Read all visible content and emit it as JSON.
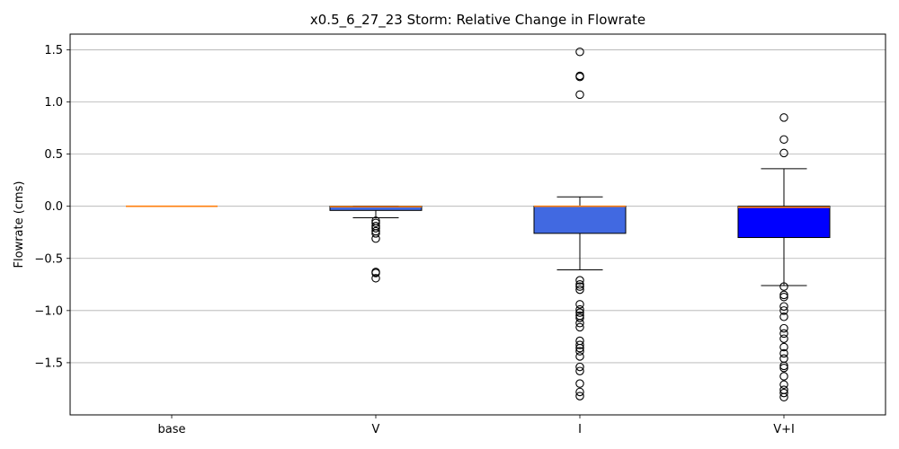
{
  "chart_data": {
    "type": "box",
    "title": "x0.5_6_27_23 Storm: Relative Change in Flowrate",
    "xlabel": "",
    "ylabel": "Flowrate (cms)",
    "ylim": [
      -2.0,
      1.65
    ],
    "yticks": [
      1.5,
      1.0,
      0.5,
      0.0,
      -0.5,
      -1.0,
      -1.5
    ],
    "ytick_labels": [
      "1.5",
      "1.0",
      "0.5",
      "0.0",
      "−0.5",
      "−1.0",
      "−1.5"
    ],
    "grid": "y",
    "categories": [
      "base",
      "V",
      "I",
      "V+I"
    ],
    "boxes": [
      {
        "label": "base",
        "q1": 0.0,
        "median": 0.0,
        "q3": 0.0,
        "whisker_low": 0.0,
        "whisker_high": 0.0,
        "fill": "#4169e1",
        "outliers": []
      },
      {
        "label": "V",
        "q1": -0.04,
        "median": -0.005,
        "q3": 0.0,
        "whisker_low": -0.11,
        "whisker_high": 0.0,
        "fill": "#4169e1",
        "outliers": [
          -0.14,
          -0.16,
          -0.19,
          -0.21,
          -0.24,
          -0.26,
          -0.31,
          -0.63,
          -0.64,
          -0.69
        ]
      },
      {
        "label": "I",
        "q1": -0.26,
        "median": 0.0,
        "q3": 0.0,
        "whisker_low": -0.61,
        "whisker_high": 0.09,
        "fill": "#4169e1",
        "outliers": [
          1.48,
          1.25,
          1.24,
          1.07,
          -0.71,
          -0.75,
          -0.77,
          -0.8,
          -0.94,
          -0.99,
          -1.02,
          -1.05,
          -1.07,
          -1.12,
          -1.16,
          -1.29,
          -1.33,
          -1.36,
          -1.39,
          -1.44,
          -1.54,
          -1.58,
          -1.7,
          -1.78,
          -1.82
        ]
      },
      {
        "label": "V+I",
        "q1": -0.3,
        "median": -0.01,
        "q3": 0.0,
        "whisker_low": -0.76,
        "whisker_high": 0.36,
        "fill": "#0000ff",
        "outliers": [
          0.85,
          0.64,
          0.51,
          -0.77,
          -0.85,
          -0.87,
          -0.96,
          -1.0,
          -1.06,
          -1.17,
          -1.22,
          -1.27,
          -1.35,
          -1.41,
          -1.46,
          -1.53,
          -1.55,
          -1.63,
          -1.71,
          -1.76,
          -1.79,
          -1.83
        ]
      }
    ],
    "colors": {
      "median": "#ff7f0e",
      "grid": "#b0b0b0",
      "outline": "#000000"
    }
  }
}
